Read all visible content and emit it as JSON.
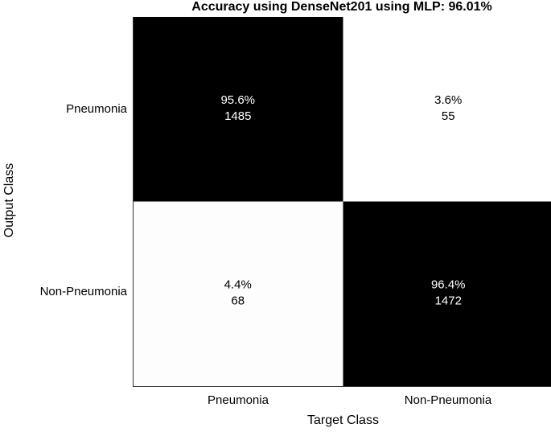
{
  "chart_data": {
    "type": "heatmap",
    "title": "Accuracy using DenseNet201 using MLP:  96.01%",
    "xlabel": "Target Class",
    "ylabel": "Output Class",
    "x_categories": [
      "Pneumonia",
      "Non-Pneumonia"
    ],
    "y_categories": [
      "Pneumonia",
      "Non-Pneumonia"
    ],
    "cells": [
      {
        "row": 0,
        "col": 0,
        "percent": "95.6%",
        "count": 1485,
        "fill": "#000000",
        "text_color": "#ffffff"
      },
      {
        "row": 0,
        "col": 1,
        "percent": "3.6%",
        "count": 55,
        "fill": "#ffffff",
        "text_color": "#000000"
      },
      {
        "row": 1,
        "col": 0,
        "percent": "4.4%",
        "count": 68,
        "fill": "#fdfdfd",
        "text_color": "#000000"
      },
      {
        "row": 1,
        "col": 1,
        "percent": "96.4%",
        "count": 1472,
        "fill": "#000000",
        "text_color": "#ffffff"
      }
    ]
  }
}
